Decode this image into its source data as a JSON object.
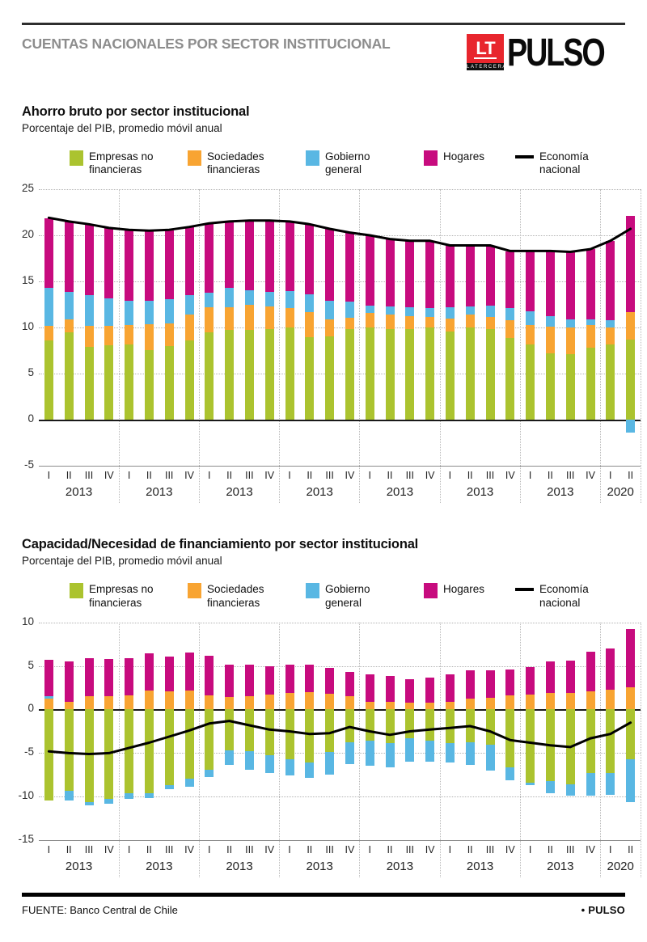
{
  "header": {
    "kicker": "CUENTAS NACIONALES POR SECTOR INSTITUCIONAL",
    "brand": {
      "lt": "LT",
      "latercera": "LATERCERA",
      "pulso": "PULSO"
    }
  },
  "footer": {
    "source": "FUENTE: Banco Central de Chile",
    "bullet": "•",
    "brand": "PULSO"
  },
  "colors": {
    "empresas": "#abc32f",
    "sociedades": "#f8a432",
    "gobierno": "#59b7e3",
    "hogares": "#c70b7e",
    "economia": "#000000",
    "logo_red": "#e8262d",
    "kicker_gray": "#8d8d8d"
  },
  "chart_data": [
    {
      "type": "bar",
      "title": "Ahorro bruto por sector institucional",
      "subtitle": "Porcentaje del PIB, promedio móvil anual",
      "ylim": [
        -5,
        25
      ],
      "yticks": [
        25,
        20,
        15,
        10,
        5,
        0,
        -5
      ],
      "grid": true,
      "legend_position": "top",
      "x_groups": [
        {
          "year": "2013",
          "quarters": [
            "I",
            "II",
            "III",
            "IV"
          ]
        },
        {
          "year": "2013",
          "quarters": [
            "I",
            "II",
            "III",
            "IV"
          ]
        },
        {
          "year": "2013",
          "quarters": [
            "I",
            "II",
            "III",
            "IV"
          ]
        },
        {
          "year": "2013",
          "quarters": [
            "I",
            "II",
            "III",
            "IV"
          ]
        },
        {
          "year": "2013",
          "quarters": [
            "I",
            "II",
            "III",
            "IV"
          ]
        },
        {
          "year": "2013",
          "quarters": [
            "I",
            "II",
            "III",
            "IV"
          ]
        },
        {
          "year": "2013",
          "quarters": [
            "I",
            "II",
            "III",
            "IV"
          ]
        },
        {
          "year": "2020",
          "quarters": [
            "I",
            "II"
          ]
        }
      ],
      "series": [
        {
          "key": "empresas",
          "name": "Empresas no financieras",
          "name_lines": [
            "Empresas no",
            "financieras"
          ],
          "type": "bar",
          "values": [
            8.6,
            9.5,
            7.9,
            8.1,
            8.2,
            7.6,
            8.0,
            8.6,
            9.5,
            9.8,
            9.8,
            9.9,
            10.0,
            9.0,
            9.1,
            9.9,
            10.0,
            9.9,
            9.9,
            10.0,
            9.6,
            10.0,
            9.9,
            8.9,
            8.2,
            7.2,
            7.1,
            7.8,
            8.2,
            8.7
          ]
        },
        {
          "key": "sociedades",
          "name": "Sociedades financieras",
          "name_lines": [
            "Sociedades",
            "financieras"
          ],
          "type": "bar",
          "values": [
            1.6,
            1.4,
            2.3,
            2.1,
            2.1,
            2.8,
            2.5,
            2.8,
            2.7,
            2.4,
            2.7,
            2.4,
            2.1,
            2.7,
            1.8,
            1.2,
            1.6,
            1.5,
            1.4,
            1.2,
            1.4,
            1.4,
            1.3,
            1.9,
            2.1,
            2.9,
            2.9,
            2.5,
            1.8,
            3.0
          ]
        },
        {
          "key": "gobierno",
          "name": "Gobierno general",
          "name_lines": [
            "Gobierno",
            "general"
          ],
          "type": "bar",
          "values": [
            4.1,
            3.0,
            3.3,
            3.0,
            2.6,
            2.5,
            2.6,
            2.1,
            1.6,
            2.1,
            1.6,
            1.6,
            1.9,
            1.9,
            2.0,
            1.7,
            0.8,
            0.9,
            0.9,
            0.9,
            1.2,
            0.9,
            1.2,
            1.3,
            1.5,
            1.2,
            0.9,
            0.6,
            0.8,
            -1.4
          ]
        },
        {
          "key": "hogares",
          "name": "Hogares",
          "name_lines": [
            "Hogares"
          ],
          "type": "bar",
          "values": [
            7.6,
            7.6,
            7.7,
            7.6,
            7.7,
            7.6,
            7.5,
            7.4,
            7.5,
            7.2,
            7.5,
            7.7,
            7.5,
            7.6,
            7.8,
            7.5,
            7.6,
            7.3,
            7.2,
            7.3,
            6.7,
            6.6,
            6.5,
            6.2,
            6.5,
            7.0,
            7.3,
            7.6,
            8.6,
            10.4
          ]
        },
        {
          "key": "economia",
          "name": "Economía nacional",
          "name_lines": [
            "Economía",
            "nacional"
          ],
          "type": "line",
          "values": [
            21.9,
            21.5,
            21.2,
            20.8,
            20.6,
            20.5,
            20.6,
            20.9,
            21.3,
            21.5,
            21.6,
            21.6,
            21.5,
            21.2,
            20.7,
            20.3,
            20.0,
            19.6,
            19.4,
            19.4,
            18.9,
            18.9,
            18.9,
            18.3,
            18.3,
            18.3,
            18.2,
            18.5,
            19.4,
            20.7
          ]
        }
      ]
    },
    {
      "type": "bar",
      "title": "Capacidad/Necesidad de financiamiento por sector institucional",
      "subtitle": "Porcentaje del PIB, promedio móvil anual",
      "ylim": [
        -15,
        10
      ],
      "yticks": [
        10,
        5,
        0,
        -5,
        -10,
        -15
      ],
      "grid": true,
      "legend_position": "top",
      "x_groups": [
        {
          "year": "2013",
          "quarters": [
            "I",
            "II",
            "III",
            "IV"
          ]
        },
        {
          "year": "2013",
          "quarters": [
            "I",
            "II",
            "III",
            "IV"
          ]
        },
        {
          "year": "2013",
          "quarters": [
            "I",
            "II",
            "III",
            "IV"
          ]
        },
        {
          "year": "2013",
          "quarters": [
            "I",
            "II",
            "III",
            "IV"
          ]
        },
        {
          "year": "2013",
          "quarters": [
            "I",
            "II",
            "III",
            "IV"
          ]
        },
        {
          "year": "2013",
          "quarters": [
            "I",
            "II",
            "III",
            "IV"
          ]
        },
        {
          "year": "2013",
          "quarters": [
            "I",
            "II",
            "III",
            "IV"
          ]
        },
        {
          "year": "2020",
          "quarters": [
            "I",
            "II"
          ]
        }
      ],
      "series": [
        {
          "key": "empresas",
          "name": "Empresas no financieras",
          "name_lines": [
            "Empresas no",
            "financieras"
          ],
          "type": "bar",
          "values": [
            -10.5,
            -9.4,
            -10.7,
            -10.3,
            -9.6,
            -9.6,
            -8.7,
            -8.0,
            -6.9,
            -4.7,
            -4.8,
            -5.3,
            -5.7,
            -6.1,
            -4.9,
            -3.8,
            -3.6,
            -3.9,
            -3.3,
            -3.6,
            -3.9,
            -3.8,
            -4.1,
            -6.7,
            -8.4,
            -8.2,
            -8.6,
            -7.3,
            -7.3,
            -5.7
          ]
        },
        {
          "key": "sociedades",
          "name": "Sociedades financieras",
          "name_lines": [
            "Sociedades",
            "financieras"
          ],
          "type": "bar",
          "values": [
            1.2,
            0.9,
            1.5,
            1.5,
            1.6,
            2.2,
            2.1,
            2.2,
            1.6,
            1.4,
            1.5,
            1.7,
            1.9,
            2.0,
            1.8,
            1.5,
            0.9,
            0.9,
            0.8,
            0.8,
            0.9,
            1.2,
            1.3,
            1.6,
            1.7,
            1.9,
            1.9,
            2.1,
            2.3,
            2.5
          ]
        },
        {
          "key": "gobierno",
          "name": "Gobierno general",
          "name_lines": [
            "Gobierno",
            "general"
          ],
          "type": "bar",
          "values": [
            0.3,
            -1.1,
            -0.3,
            -0.5,
            -0.7,
            -0.6,
            -0.5,
            -0.9,
            -0.9,
            -1.7,
            -2.1,
            -2.0,
            -1.9,
            -1.8,
            -2.6,
            -2.5,
            -2.9,
            -2.8,
            -2.7,
            -2.4,
            -2.2,
            -2.6,
            -2.9,
            -1.4,
            -0.3,
            -1.4,
            -1.3,
            -2.6,
            -2.5,
            -5.0
          ]
        },
        {
          "key": "hogares",
          "name": "Hogares",
          "name_lines": [
            "Hogares"
          ],
          "type": "bar",
          "values": [
            4.2,
            4.6,
            4.4,
            4.3,
            4.3,
            4.2,
            4.0,
            4.3,
            4.6,
            3.7,
            3.6,
            3.3,
            3.2,
            3.1,
            3.0,
            2.8,
            3.1,
            2.9,
            2.7,
            2.9,
            3.1,
            3.3,
            3.2,
            3.0,
            3.2,
            3.6,
            3.7,
            4.5,
            4.7,
            6.7
          ]
        },
        {
          "key": "economia",
          "name": "Economía nacional",
          "name_lines": [
            "Economía",
            "nacional"
          ],
          "type": "line",
          "values": [
            -4.8,
            -5.0,
            -5.1,
            -5.0,
            -4.4,
            -3.8,
            -3.1,
            -2.4,
            -1.6,
            -1.3,
            -1.8,
            -2.3,
            -2.5,
            -2.8,
            -2.7,
            -2.0,
            -2.5,
            -2.9,
            -2.5,
            -2.3,
            -2.1,
            -1.9,
            -2.5,
            -3.5,
            -3.8,
            -4.1,
            -4.3,
            -3.3,
            -2.8,
            -1.5
          ]
        }
      ]
    }
  ]
}
